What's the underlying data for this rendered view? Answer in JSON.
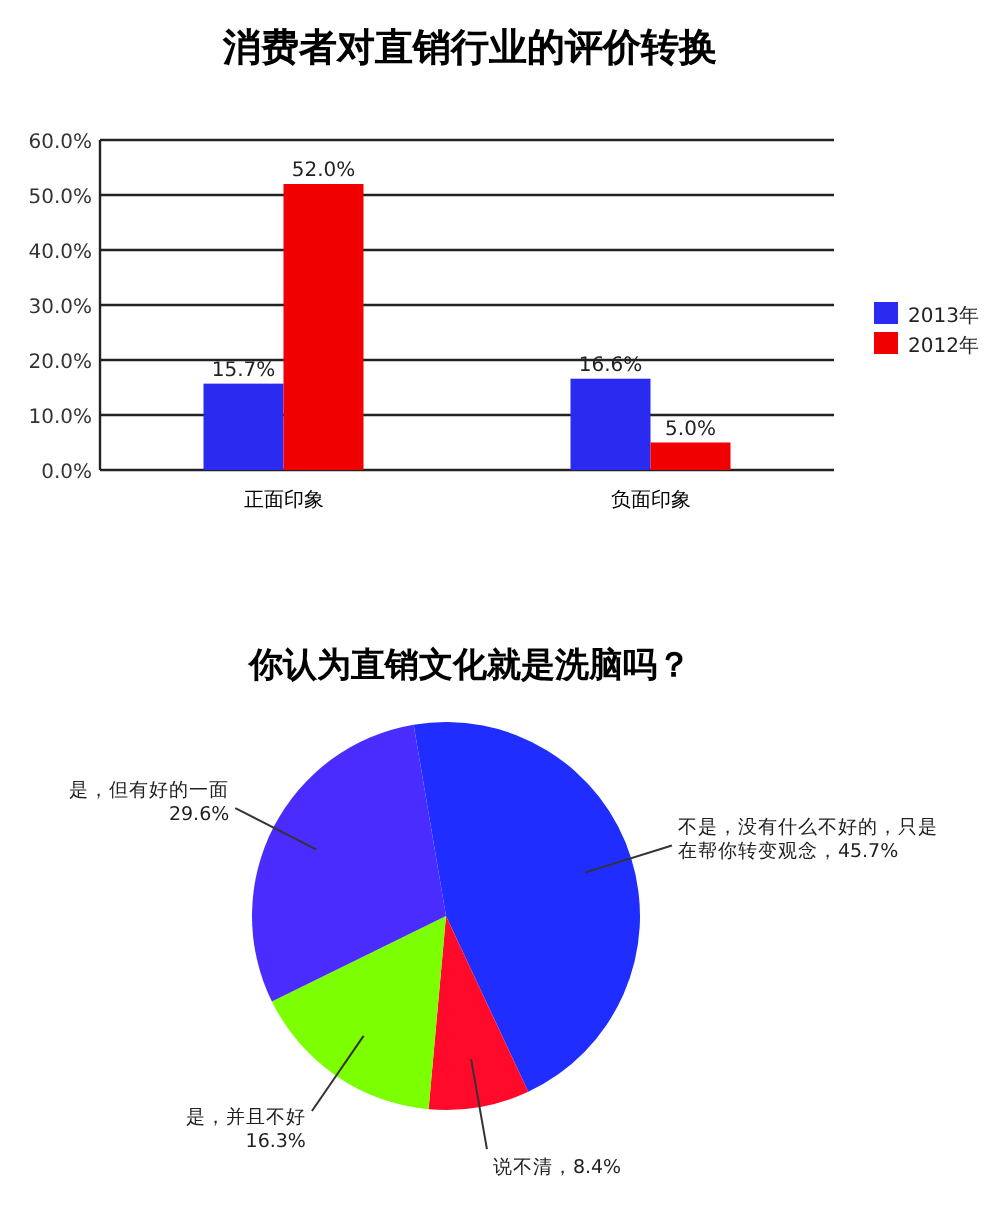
{
  "chart_data": [
    {
      "type": "bar",
      "title": "消费者对直销行业的评价转换",
      "categories": [
        "正面印象",
        "负面印象"
      ],
      "series": [
        {
          "name": "2013年",
          "color": "#2a2af0",
          "values": [
            15.7,
            16.6
          ],
          "value_labels": [
            "15.7%",
            "16.6%"
          ]
        },
        {
          "name": "2012年",
          "color": "#f00000",
          "values": [
            52.0,
            5.0
          ],
          "value_labels": [
            "52.0%",
            "5.0%"
          ]
        }
      ],
      "ylim": [
        0,
        60
      ],
      "yticks": [
        {
          "value": 0,
          "label": "0.0%"
        },
        {
          "value": 10,
          "label": "10.0%"
        },
        {
          "value": 20,
          "label": "20.0%"
        },
        {
          "value": 30,
          "label": "30.0%"
        },
        {
          "value": 40,
          "label": "40.0%"
        },
        {
          "value": 50,
          "label": "50.0%"
        },
        {
          "value": 60,
          "label": "60.0%"
        }
      ],
      "grid": "y",
      "legend": "right"
    },
    {
      "type": "pie",
      "title": "你认为直销文化就是洗脑吗？",
      "categories": [
        "不是，没有什么不好的，只是在帮你转变观念",
        "说不清",
        "是，并且不好",
        "是，但有好的一面"
      ],
      "values": [
        45.7,
        8.4,
        16.3,
        29.6
      ],
      "value_labels": [
        "45.7%",
        "8.4%",
        "16.3%",
        "29.6%"
      ],
      "colors": [
        "#1f2eff",
        "#ff0a2a",
        "#7cff00",
        "#4b2cff"
      ]
    }
  ]
}
